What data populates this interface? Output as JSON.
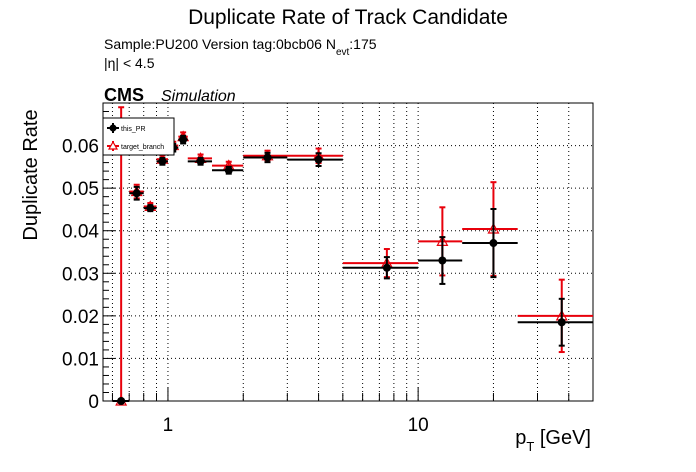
{
  "chart_data": {
    "type": "scatter",
    "title": "Duplicate Rate of Track Candidate",
    "info": {
      "sample_label": "Sample:PU200   Version tag:0bcb06  N",
      "nevt_sub": "evt",
      "nevt_value": ":175",
      "eta_cut": "|η| < 4.5"
    },
    "cms_label": "CMS",
    "simulation_label": "Simulation",
    "ylabel": "Duplicate Rate",
    "xlabel_main": "p",
    "xlabel_sub": "T",
    "xlabel_unit": " [GeV]",
    "x_scale": "log",
    "xlim": [
      0.55,
      50
    ],
    "ylim": [
      0,
      0.07
    ],
    "grid": true,
    "legend_placement": "top-left",
    "y_ticks": [
      {
        "value": 0,
        "label": "0"
      },
      {
        "value": 0.01,
        "label": "0.01"
      },
      {
        "value": 0.02,
        "label": "0.02"
      },
      {
        "value": 0.03,
        "label": "0.03"
      },
      {
        "value": 0.04,
        "label": "0.04"
      },
      {
        "value": 0.05,
        "label": "0.05"
      },
      {
        "value": 0.06,
        "label": "0.06"
      }
    ],
    "x_ticks": [
      {
        "value": 1,
        "label": "1"
      },
      {
        "value": 10,
        "label": "10"
      }
    ],
    "series": [
      {
        "name": "this_PR",
        "color": "#000000",
        "marker": "filled-circle",
        "points": [
          {
            "x": 0.65,
            "xlo": 0.6,
            "xhi": 0.7,
            "y": 0.0,
            "yerr": 0.0
          },
          {
            "x": 0.75,
            "xlo": 0.7,
            "xhi": 0.8,
            "y": 0.0488,
            "yerr": 0.0015
          },
          {
            "x": 0.85,
            "xlo": 0.8,
            "xhi": 0.9,
            "y": 0.0453,
            "yerr": 0.0007
          },
          {
            "x": 0.95,
            "xlo": 0.9,
            "xhi": 1.0,
            "y": 0.0563,
            "yerr": 0.0008
          },
          {
            "x": 1.05,
            "xlo": 1.0,
            "xhi": 1.1,
            "y": 0.0595,
            "yerr": 0.0009
          },
          {
            "x": 1.15,
            "xlo": 1.1,
            "xhi": 1.2,
            "y": 0.0614,
            "yerr": 0.0009
          },
          {
            "x": 1.35,
            "xlo": 1.2,
            "xhi": 1.5,
            "y": 0.0563,
            "yerr": 0.0008
          },
          {
            "x": 1.75,
            "xlo": 1.5,
            "xhi": 2.0,
            "y": 0.0542,
            "yerr": 0.0008
          },
          {
            "x": 2.5,
            "xlo": 2.0,
            "xhi": 3.0,
            "y": 0.0572,
            "yerr": 0.0011
          },
          {
            "x": 4.0,
            "xlo": 3.0,
            "xhi": 5.0,
            "y": 0.0567,
            "yerr": 0.0015
          },
          {
            "x": 7.5,
            "xlo": 5.0,
            "xhi": 10.0,
            "y": 0.0313,
            "yerr": 0.0025
          },
          {
            "x": 12.5,
            "xlo": 10.0,
            "xhi": 15.0,
            "y": 0.033,
            "yerr": 0.0055
          },
          {
            "x": 20.0,
            "xlo": 15.0,
            "xhi": 25.0,
            "y": 0.0371,
            "yerr": 0.008
          },
          {
            "x": 37.5,
            "xlo": 25.0,
            "xhi": 50.0,
            "y": 0.0185,
            "yerr": 0.0055
          }
        ]
      },
      {
        "name": "target_branch",
        "color": "#e8000b",
        "marker": "open-triangle",
        "points": [
          {
            "x": 0.65,
            "xlo": 0.6,
            "xhi": 0.7,
            "y": 0.0,
            "yerr": 0.069
          },
          {
            "x": 0.75,
            "xlo": 0.7,
            "xhi": 0.8,
            "y": 0.0492,
            "yerr": 0.0016
          },
          {
            "x": 0.85,
            "xlo": 0.8,
            "xhi": 0.9,
            "y": 0.0457,
            "yerr": 0.0008
          },
          {
            "x": 0.95,
            "xlo": 0.9,
            "xhi": 1.0,
            "y": 0.0568,
            "yerr": 0.0009
          },
          {
            "x": 1.05,
            "xlo": 1.0,
            "xhi": 1.1,
            "y": 0.06,
            "yerr": 0.0009
          },
          {
            "x": 1.15,
            "xlo": 1.1,
            "xhi": 1.2,
            "y": 0.0621,
            "yerr": 0.001
          },
          {
            "x": 1.35,
            "xlo": 1.2,
            "xhi": 1.5,
            "y": 0.057,
            "yerr": 0.0009
          },
          {
            "x": 1.75,
            "xlo": 1.5,
            "xhi": 2.0,
            "y": 0.0553,
            "yerr": 0.0009
          },
          {
            "x": 2.5,
            "xlo": 2.0,
            "xhi": 3.0,
            "y": 0.0576,
            "yerr": 0.0012
          },
          {
            "x": 4.0,
            "xlo": 3.0,
            "xhi": 5.0,
            "y": 0.0576,
            "yerr": 0.0017
          },
          {
            "x": 7.5,
            "xlo": 5.0,
            "xhi": 10.0,
            "y": 0.0324,
            "yerr": 0.0033
          },
          {
            "x": 12.5,
            "xlo": 10.0,
            "xhi": 15.0,
            "y": 0.0375,
            "yerr": 0.008
          },
          {
            "x": 20.0,
            "xlo": 15.0,
            "xhi": 25.0,
            "y": 0.0404,
            "yerr": 0.011
          },
          {
            "x": 37.5,
            "xlo": 25.0,
            "xhi": 50.0,
            "y": 0.02,
            "yerr": 0.0085
          }
        ]
      }
    ]
  }
}
